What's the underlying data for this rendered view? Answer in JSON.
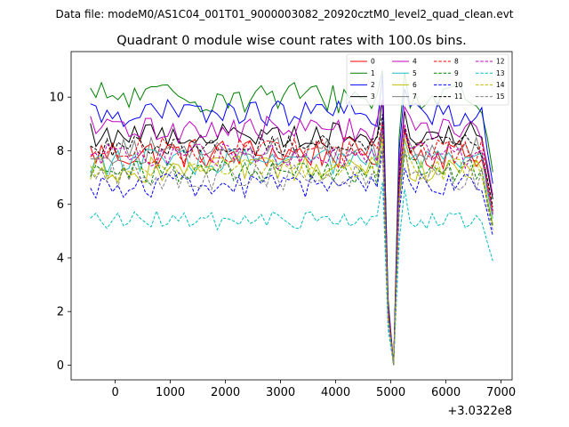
{
  "suptitle": "Data file: modeM0/AS1C04_001T01_9000003082_20920cztM0_level2_quad_clean.evt",
  "chart_data": {
    "type": "line",
    "title": "Quadrant 0 module wise count rates with 100.0s bins.",
    "xlabel": "",
    "ylabel": "",
    "x_offset_label": "+3.0322e8",
    "xlim": [
      -800,
      7200
    ],
    "ylim": [
      -0.55,
      11.7
    ],
    "x_ticks": [
      0,
      1000,
      2000,
      3000,
      4000,
      5000,
      6000,
      7000
    ],
    "x_tick_labels": [
      "0",
      "1000",
      "2000",
      "3000",
      "4000",
      "5000",
      "6000",
      "7000"
    ],
    "y_ticks": [
      0,
      2,
      4,
      6,
      8,
      10
    ],
    "y_tick_labels": [
      "0",
      "2",
      "4",
      "6",
      "8",
      "10"
    ],
    "x_start": -450,
    "x_step": 100,
    "num_points": 74,
    "legend_position": "top-right",
    "series": [
      {
        "name": "0",
        "color": "#ff0000",
        "dash": "solid",
        "base": 7.9,
        "jitter": 0.6
      },
      {
        "name": "1",
        "color": "#008000",
        "dash": "solid",
        "base": 10.0,
        "jitter": 0.6
      },
      {
        "name": "2",
        "color": "#0000ff",
        "dash": "solid",
        "base": 9.4,
        "jitter": 0.5
      },
      {
        "name": "3",
        "color": "#000000",
        "dash": "solid",
        "base": 8.6,
        "jitter": 0.5
      },
      {
        "name": "4",
        "color": "#bf00bf",
        "dash": "solid",
        "base": 8.8,
        "jitter": 0.5
      },
      {
        "name": "5",
        "color": "#1fbfbf",
        "dash": "solid",
        "base": 7.6,
        "jitter": 0.5
      },
      {
        "name": "6",
        "color": "#bfbf00",
        "dash": "solid",
        "base": 7.3,
        "jitter": 0.5
      },
      {
        "name": "7",
        "color": "#808080",
        "dash": "solid",
        "base": 8.0,
        "jitter": 0.5
      },
      {
        "name": "8",
        "color": "#ff0000",
        "dash": "dashed",
        "base": 8.0,
        "jitter": 0.5
      },
      {
        "name": "9",
        "color": "#008000",
        "dash": "dashed",
        "base": 7.2,
        "jitter": 0.5
      },
      {
        "name": "10",
        "color": "#0000ff",
        "dash": "dashed",
        "base": 6.7,
        "jitter": 0.5
      },
      {
        "name": "11",
        "color": "#000000",
        "dash": "dashed",
        "base": 8.2,
        "jitter": 0.4
      },
      {
        "name": "12",
        "color": "#bf00bf",
        "dash": "dashed",
        "base": 7.8,
        "jitter": 0.5
      },
      {
        "name": "13",
        "color": "#00bfbf",
        "dash": "dashed",
        "base": 5.4,
        "jitter": 0.35
      },
      {
        "name": "14",
        "color": "#bfbf00",
        "dash": "dashed",
        "base": 7.3,
        "jitter": 0.4
      },
      {
        "name": "15",
        "color": "#808080",
        "dash": "dashed",
        "base": 7.0,
        "jitter": 0.5
      }
    ],
    "special_points": [
      {
        "x": 4950,
        "factor": 0.25
      },
      {
        "x": 5050,
        "factor": 0.0
      },
      {
        "x": 5150,
        "factor": 0.85
      },
      {
        "x": 6750,
        "factor": 0.85
      },
      {
        "x": 6850,
        "factor": 0.72
      }
    ],
    "peak_points": [
      {
        "x": 4850,
        "add": 1.0
      },
      {
        "x": 5250,
        "add": 0.6
      }
    ]
  }
}
